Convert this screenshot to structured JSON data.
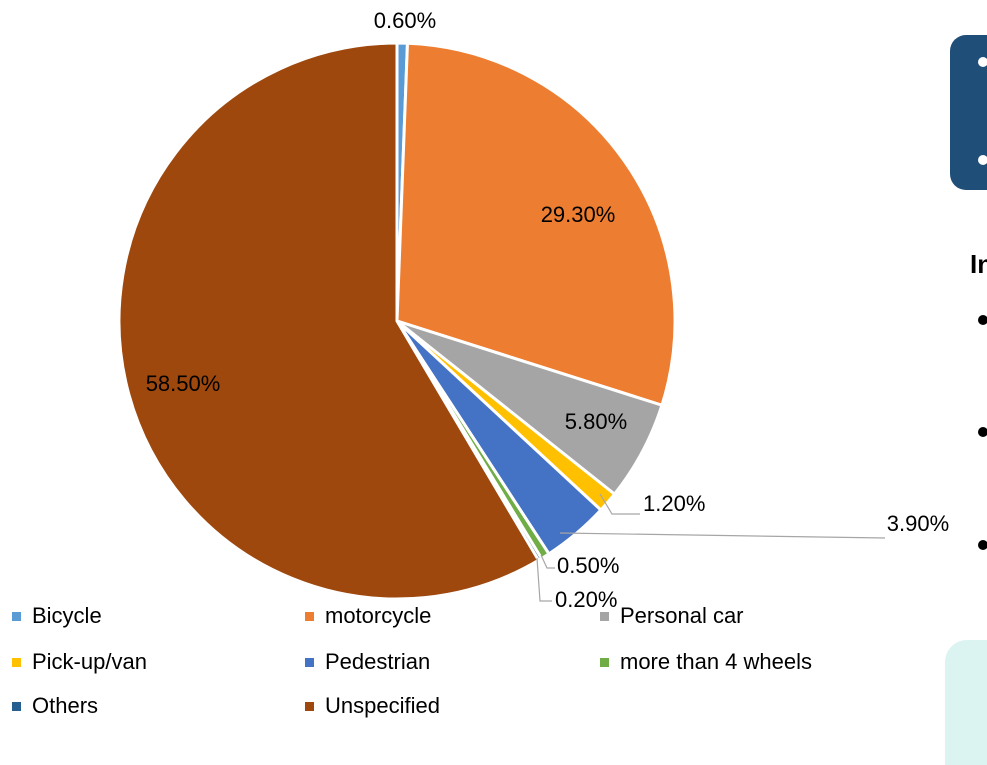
{
  "chart_data": {
    "type": "pie",
    "categories": [
      "Bicycle",
      "motorcycle",
      "Personal car",
      "Pick-up/van",
      "Pedestrian",
      "more than 4 wheels",
      "Others",
      "Unspecified"
    ],
    "values": [
      0.6,
      29.3,
      5.8,
      1.2,
      3.9,
      0.5,
      0.2,
      58.5
    ],
    "value_labels": [
      "0.60%",
      "29.30%",
      "5.80%",
      "1.20%",
      "3.90%",
      "0.50%",
      "0.20%",
      "58.50%"
    ],
    "colors": [
      "#5b9bd5",
      "#ed7d31",
      "#a5a5a5",
      "#ffc000",
      "#4472c4",
      "#70ad47",
      "#255e91",
      "#9e480e"
    ],
    "legend": "bottom"
  },
  "slide_fragment": {
    "heading": "In"
  }
}
